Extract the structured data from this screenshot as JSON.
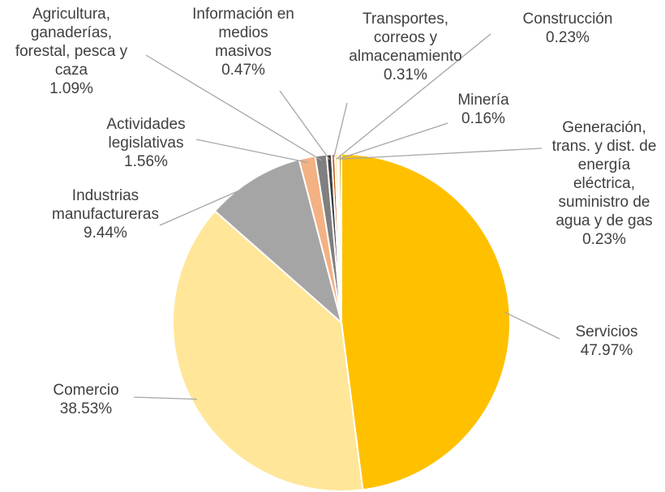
{
  "chart_data": {
    "type": "pie",
    "categories": [
      "Servicios",
      "Comercio",
      "Industrias\nmanufactureras",
      "Actividades\nlegislativas",
      "Agricultura,\nganaderías,\nforestal, pesca y\ncaza",
      "Información en\nmedios\nmasivos",
      "Transportes,\ncorreos y\nalmacenamiento",
      "Construcción",
      "Minería",
      "Generación,\ntrans. y dist. de\nenergía\neléctrica,\nsuministro de\nagua y de gas"
    ],
    "values": [
      47.97,
      38.53,
      9.44,
      1.56,
      1.09,
      0.47,
      0.31,
      0.23,
      0.16,
      0.23
    ],
    "value_labels": [
      "47.97%",
      "38.53%",
      "9.44%",
      "1.56%",
      "1.09%",
      "0.47%",
      "0.31%",
      "0.23%",
      "0.16%",
      "0.23%"
    ],
    "colors": [
      "#FFC000",
      "#FFE699",
      "#A5A5A5",
      "#F4B183",
      "#7F7F7F",
      "#404040",
      "#C55A11",
      "#FFD966",
      "#843C0C",
      "#BF9000"
    ]
  }
}
